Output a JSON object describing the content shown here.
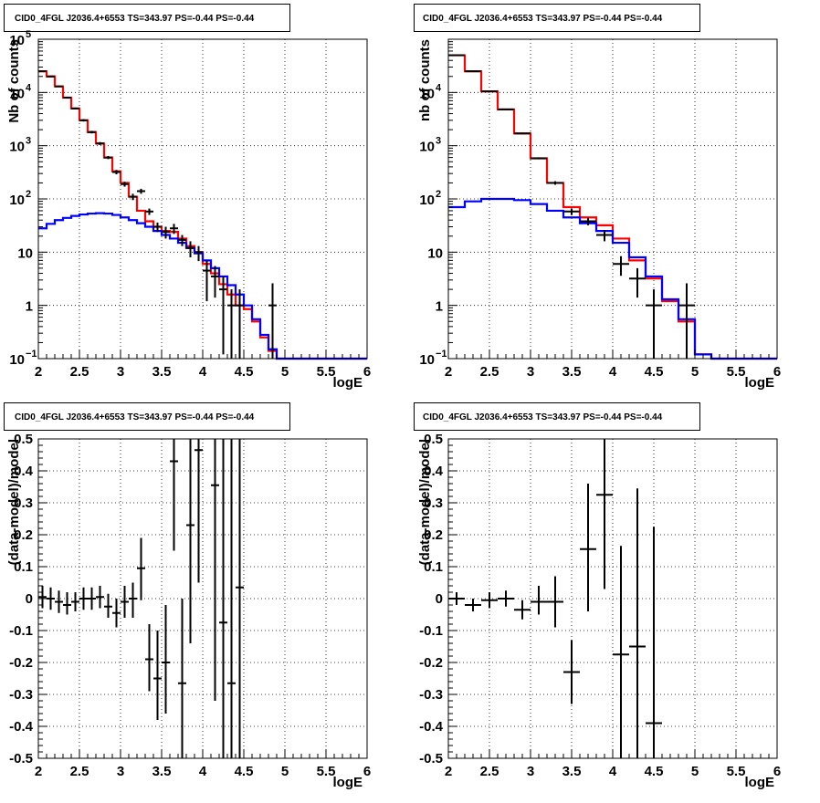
{
  "chart_data": [
    {
      "type": "step-histogram",
      "title": "CID0_4FGL J2036.4+6553 TS=343.97 PS=-0.44 PS=-0.44",
      "xlabel": "logE",
      "ylabel": "Nb of counts",
      "xlim": [
        2,
        6
      ],
      "ylim": [
        0.1,
        100000
      ],
      "yscale": "log",
      "grid": true,
      "xticks": [
        "2",
        "2.5",
        "3",
        "3.5",
        "4",
        "4.5",
        "5",
        "5.5",
        "6"
      ],
      "yticks": [
        {
          "v": 0.1,
          "m": "10",
          "e": "−1"
        },
        {
          "v": 1,
          "m": "1",
          "e": ""
        },
        {
          "v": 10,
          "m": "10",
          "e": ""
        },
        {
          "v": 100,
          "m": "10",
          "e": "2"
        },
        {
          "v": 1000,
          "m": "10",
          "e": "3"
        },
        {
          "v": 10000,
          "m": "10",
          "e": "4"
        },
        {
          "v": 100000,
          "m": "10",
          "e": "5"
        }
      ],
      "bin_edges": [
        2.0,
        2.1,
        2.2,
        2.3,
        2.4,
        2.5,
        2.6,
        2.7,
        2.8,
        2.9,
        3.0,
        3.1,
        3.2,
        3.3,
        3.4,
        3.5,
        3.6,
        3.7,
        3.8,
        3.9,
        4.0,
        4.1,
        4.2,
        4.3,
        4.4,
        4.5,
        4.6,
        4.7,
        4.8,
        4.9,
        5.0,
        5.1,
        5.2,
        5.3,
        5.4,
        5.5,
        5.6,
        5.7,
        5.8,
        5.9,
        6.0
      ],
      "series": [
        {
          "color": "#ff0000",
          "values": [
            25000,
            20000,
            13000,
            8000,
            5000,
            3000,
            1800,
            1100,
            600,
            330,
            200,
            110,
            60,
            38,
            30,
            25,
            24,
            18,
            13,
            10,
            6,
            4,
            2.5,
            1.6,
            1.0,
            0.85,
            0.5,
            0.25,
            0.14,
            0.1,
            0.1,
            0.1,
            0.1,
            0.1,
            0.1,
            0.1,
            0.1,
            0.1,
            0.1,
            0.1
          ]
        },
        {
          "color": "#0000ff",
          "values": [
            28,
            34,
            40,
            44,
            48,
            51,
            53,
            54,
            53,
            50,
            45,
            40,
            35,
            30,
            25,
            21,
            18,
            15,
            12,
            9.5,
            7,
            5,
            3.5,
            2.4,
            1.6,
            1.0,
            0.55,
            0.28,
            0.15,
            0.1,
            0.1,
            0.1,
            0.1,
            0.1,
            0.1,
            0.1,
            0.1,
            0.1,
            0.1,
            0.1
          ]
        }
      ],
      "points": [
        {
          "x": 2.05,
          "y": 25000,
          "ylo": 24500,
          "yhi": 25500
        },
        {
          "x": 2.15,
          "y": 20000,
          "ylo": 19500,
          "yhi": 20500
        },
        {
          "x": 2.25,
          "y": 13000,
          "ylo": 12600,
          "yhi": 13400
        },
        {
          "x": 2.35,
          "y": 8000,
          "ylo": 7700,
          "yhi": 8300
        },
        {
          "x": 2.45,
          "y": 5000,
          "ylo": 4800,
          "yhi": 5200
        },
        {
          "x": 2.55,
          "y": 3000,
          "ylo": 2850,
          "yhi": 3150
        },
        {
          "x": 2.65,
          "y": 1800,
          "ylo": 1700,
          "yhi": 1900
        },
        {
          "x": 2.75,
          "y": 1100,
          "ylo": 1030,
          "yhi": 1170
        },
        {
          "x": 2.85,
          "y": 600,
          "ylo": 560,
          "yhi": 640
        },
        {
          "x": 2.95,
          "y": 320,
          "ylo": 290,
          "yhi": 350
        },
        {
          "x": 3.05,
          "y": 190,
          "ylo": 170,
          "yhi": 210
        },
        {
          "x": 3.15,
          "y": 110,
          "ylo": 95,
          "yhi": 125
        },
        {
          "x": 3.25,
          "y": 140,
          "ylo": 125,
          "yhi": 155
        },
        {
          "x": 3.35,
          "y": 58,
          "ylo": 50,
          "yhi": 66
        },
        {
          "x": 3.45,
          "y": 30,
          "ylo": 24,
          "yhi": 36
        },
        {
          "x": 3.55,
          "y": 24,
          "ylo": 18,
          "yhi": 30
        },
        {
          "x": 3.65,
          "y": 28,
          "ylo": 22,
          "yhi": 34
        },
        {
          "x": 3.75,
          "y": 17,
          "ylo": 13,
          "yhi": 21
        },
        {
          "x": 3.85,
          "y": 12,
          "ylo": 8,
          "yhi": 16
        },
        {
          "x": 3.95,
          "y": 10,
          "ylo": 6.8,
          "yhi": 13
        },
        {
          "x": 4.05,
          "y": 4.5,
          "ylo": 1.2,
          "yhi": 7
        },
        {
          "x": 4.15,
          "y": 3.5,
          "ylo": 1.4,
          "yhi": 5.5
        },
        {
          "x": 4.25,
          "y": 2.0,
          "ylo": 0.12,
          "yhi": 3.5
        },
        {
          "x": 4.35,
          "y": 1.0,
          "ylo": 0.1,
          "yhi": 2.0
        },
        {
          "x": 4.45,
          "y": 1.0,
          "ylo": 0.1,
          "yhi": 2.0
        },
        {
          "x": 4.85,
          "y": 1.0,
          "ylo": 0.1,
          "yhi": 2.6
        }
      ]
    },
    {
      "type": "step-histogram",
      "title": "CID0_4FGL J2036.4+6553 TS=343.97 PS=-0.44 PS=-0.44",
      "xlabel": "logE",
      "ylabel": "nb of counts",
      "xlim": [
        2,
        6
      ],
      "ylim": [
        0.1,
        100000
      ],
      "yscale": "log",
      "grid": true,
      "xticks": [
        "2",
        "2.5",
        "3",
        "3.5",
        "4",
        "4.5",
        "5",
        "5.5",
        "6"
      ],
      "yticks": [
        {
          "v": 0.1,
          "m": "10",
          "e": "−1"
        },
        {
          "v": 1,
          "m": "1",
          "e": ""
        },
        {
          "v": 10,
          "m": "10",
          "e": ""
        },
        {
          "v": 100,
          "m": "10",
          "e": "2"
        },
        {
          "v": 1000,
          "m": "10",
          "e": "3"
        },
        {
          "v": 10000,
          "m": "10",
          "e": "4"
        }
      ],
      "bin_edges": [
        2.0,
        2.2,
        2.4,
        2.6,
        2.8,
        3.0,
        3.2,
        3.4,
        3.6,
        3.8,
        4.0,
        4.2,
        4.4,
        4.6,
        4.8,
        5.0,
        5.2,
        5.4,
        5.6,
        5.8,
        6.0
      ],
      "series": [
        {
          "color": "#ff0000",
          "values": [
            50000,
            25000,
            10500,
            4800,
            1700,
            580,
            200,
            70,
            45,
            32,
            18,
            7,
            3.2,
            1.2,
            0.5,
            0.12,
            0.1,
            0.1,
            0.1,
            0.1
          ]
        },
        {
          "color": "#0000ff",
          "values": [
            70,
            90,
            100,
            100,
            95,
            80,
            60,
            45,
            35,
            25,
            15,
            8,
            3.5,
            1.3,
            0.55,
            0.12,
            0.1,
            0.1,
            0.1,
            0.1
          ]
        }
      ],
      "points": [
        {
          "x": 2.1,
          "y": 50000,
          "ylo": 49500,
          "yhi": 50500
        },
        {
          "x": 2.3,
          "y": 25000,
          "ylo": 24700,
          "yhi": 25300
        },
        {
          "x": 2.5,
          "y": 10500,
          "ylo": 10300,
          "yhi": 10700
        },
        {
          "x": 2.7,
          "y": 4800,
          "ylo": 4680,
          "yhi": 4920
        },
        {
          "x": 2.9,
          "y": 1700,
          "ylo": 1640,
          "yhi": 1760
        },
        {
          "x": 3.1,
          "y": 580,
          "ylo": 555,
          "yhi": 605
        },
        {
          "x": 3.3,
          "y": 200,
          "ylo": 185,
          "yhi": 215
        },
        {
          "x": 3.5,
          "y": 58,
          "ylo": 50,
          "yhi": 66
        },
        {
          "x": 3.7,
          "y": 38,
          "ylo": 32,
          "yhi": 44
        },
        {
          "x": 3.9,
          "y": 21,
          "ylo": 16,
          "yhi": 26
        },
        {
          "x": 4.1,
          "y": 6.0,
          "ylo": 3.6,
          "yhi": 8.4
        },
        {
          "x": 4.3,
          "y": 3.2,
          "ylo": 1.4,
          "yhi": 5.0
        },
        {
          "x": 4.5,
          "y": 1.0,
          "ylo": 0.1,
          "yhi": 2.0
        },
        {
          "x": 4.9,
          "y": 1.0,
          "ylo": 0.1,
          "yhi": 2.6
        }
      ]
    },
    {
      "type": "scatter",
      "title": "CID0_4FGL J2036.4+6553 TS=343.97 PS=-0.44 PS=-0.44",
      "xlabel": "logE",
      "ylabel": "(data-model)/model",
      "xlim": [
        2,
        6
      ],
      "ylim": [
        -0.5,
        0.5
      ],
      "yscale": "linear",
      "grid": true,
      "xticks": [
        "2",
        "2.5",
        "3",
        "3.5",
        "4",
        "4.5",
        "5",
        "5.5",
        "6"
      ],
      "yticks": [
        "-0.5",
        "-0.4",
        "-0.3",
        "-0.2",
        "-0.1",
        "0",
        "0.1",
        "0.2",
        "0.3",
        "0.4",
        "0.5"
      ],
      "xerr": 0.05,
      "points": [
        {
          "x": 2.05,
          "y": 0.005,
          "ylo": -0.03,
          "yhi": 0.04
        },
        {
          "x": 2.15,
          "y": 0.0,
          "ylo": -0.035,
          "yhi": 0.035
        },
        {
          "x": 2.25,
          "y": -0.01,
          "ylo": -0.045,
          "yhi": 0.025
        },
        {
          "x": 2.35,
          "y": -0.02,
          "ylo": -0.05,
          "yhi": 0.02
        },
        {
          "x": 2.45,
          "y": -0.01,
          "ylo": -0.04,
          "yhi": 0.02
        },
        {
          "x": 2.55,
          "y": 0.0,
          "ylo": -0.035,
          "yhi": 0.035
        },
        {
          "x": 2.65,
          "y": 0.0,
          "ylo": -0.035,
          "yhi": 0.035
        },
        {
          "x": 2.75,
          "y": 0.005,
          "ylo": -0.03,
          "yhi": 0.04
        },
        {
          "x": 2.85,
          "y": -0.025,
          "ylo": -0.06,
          "yhi": 0.015
        },
        {
          "x": 2.95,
          "y": -0.045,
          "ylo": -0.09,
          "yhi": 0.0
        },
        {
          "x": 3.05,
          "y": -0.01,
          "ylo": -0.06,
          "yhi": 0.04
        },
        {
          "x": 3.15,
          "y": 0.0,
          "ylo": -0.06,
          "yhi": 0.05
        },
        {
          "x": 3.25,
          "y": 0.095,
          "ylo": -0.005,
          "yhi": 0.19
        },
        {
          "x": 3.35,
          "y": -0.19,
          "ylo": -0.29,
          "yhi": -0.08
        },
        {
          "x": 3.45,
          "y": -0.25,
          "ylo": -0.38,
          "yhi": -0.1
        },
        {
          "x": 3.55,
          "y": -0.2,
          "ylo": -0.36,
          "yhi": -0.02
        },
        {
          "x": 3.65,
          "y": 0.43,
          "ylo": 0.15,
          "yhi": 0.5
        },
        {
          "x": 3.75,
          "y": -0.265,
          "ylo": -0.5,
          "yhi": 0.0
        },
        {
          "x": 3.85,
          "y": 0.23,
          "ylo": -0.14,
          "yhi": 0.5
        },
        {
          "x": 3.95,
          "y": 0.465,
          "ylo": 0.05,
          "yhi": 0.5
        },
        {
          "x": 4.15,
          "y": 0.355,
          "ylo": -0.32,
          "yhi": 0.5
        },
        {
          "x": 4.25,
          "y": -0.075,
          "ylo": -0.5,
          "yhi": 0.5
        },
        {
          "x": 4.35,
          "y": -0.265,
          "ylo": -0.5,
          "yhi": 0.5
        },
        {
          "x": 4.45,
          "y": 0.035,
          "ylo": -0.5,
          "yhi": 0.5
        }
      ]
    },
    {
      "type": "scatter",
      "title": "CID0_4FGL J2036.4+6553 TS=343.97 PS=-0.44 PS=-0.44",
      "xlabel": "logE",
      "ylabel": "(data-model)/model",
      "xlim": [
        2,
        6
      ],
      "ylim": [
        -0.5,
        0.5
      ],
      "yscale": "linear",
      "grid": true,
      "xticks": [
        "2",
        "2.5",
        "3",
        "3.5",
        "4",
        "4.5",
        "5",
        "5.5",
        "6"
      ],
      "yticks": [
        "-0.5",
        "-0.4",
        "-0.3",
        "-0.2",
        "-0.1",
        "0",
        "0.1",
        "0.2",
        "0.3",
        "0.4",
        "0.5"
      ],
      "xerr": 0.1,
      "points": [
        {
          "x": 2.1,
          "y": 0.0,
          "ylo": -0.02,
          "yhi": 0.02
        },
        {
          "x": 2.3,
          "y": -0.02,
          "ylo": -0.04,
          "yhi": 0.0
        },
        {
          "x": 2.5,
          "y": -0.005,
          "ylo": -0.03,
          "yhi": 0.02
        },
        {
          "x": 2.7,
          "y": 0.0,
          "ylo": -0.025,
          "yhi": 0.025
        },
        {
          "x": 2.9,
          "y": -0.035,
          "ylo": -0.065,
          "yhi": -0.005
        },
        {
          "x": 3.1,
          "y": -0.01,
          "ylo": -0.05,
          "yhi": 0.04
        },
        {
          "x": 3.3,
          "y": -0.01,
          "ylo": -0.09,
          "yhi": 0.07
        },
        {
          "x": 3.5,
          "y": -0.23,
          "ylo": -0.33,
          "yhi": -0.13
        },
        {
          "x": 3.7,
          "y": 0.155,
          "ylo": -0.04,
          "yhi": 0.36
        },
        {
          "x": 3.9,
          "y": 0.325,
          "ylo": 0.03,
          "yhi": 0.5
        },
        {
          "x": 4.1,
          "y": -0.175,
          "ylo": -0.5,
          "yhi": 0.165
        },
        {
          "x": 4.3,
          "y": -0.15,
          "ylo": -0.5,
          "yhi": 0.345
        },
        {
          "x": 4.5,
          "y": -0.39,
          "ylo": -0.5,
          "yhi": 0.225
        }
      ]
    }
  ]
}
